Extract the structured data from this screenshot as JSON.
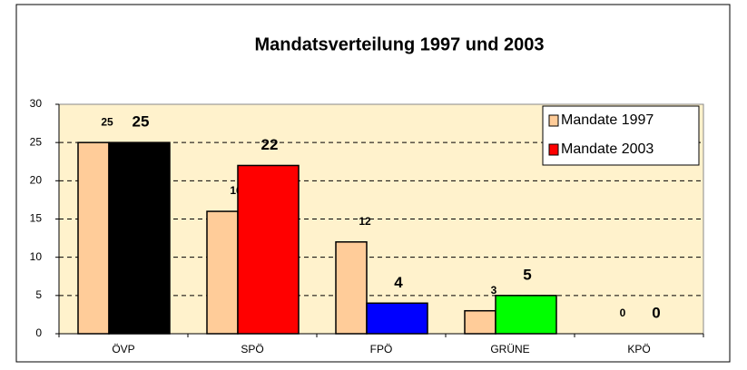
{
  "chart_data": {
    "type": "bar",
    "title": "Mandatsverteilung 1997 und 2003",
    "categories": [
      "ÖVP",
      "SPÖ",
      "FPÖ",
      "GRÜNE",
      "KPÖ"
    ],
    "series": [
      {
        "name": "Mandate 1997",
        "color": "#ffcc99",
        "values": [
          25,
          16,
          12,
          3,
          0
        ]
      },
      {
        "name": "Mandate 2003",
        "color": "#ff0000",
        "point_colors": [
          "#000000",
          "#ff0000",
          "#0000ff",
          "#00ff00"
        ],
        "values": [
          25,
          22,
          4,
          5,
          0
        ]
      }
    ],
    "ylim": [
      0,
      30
    ],
    "yticks": [
      0,
      5,
      10,
      15,
      20,
      25,
      30
    ],
    "grid": true,
    "legend": "top-right"
  }
}
